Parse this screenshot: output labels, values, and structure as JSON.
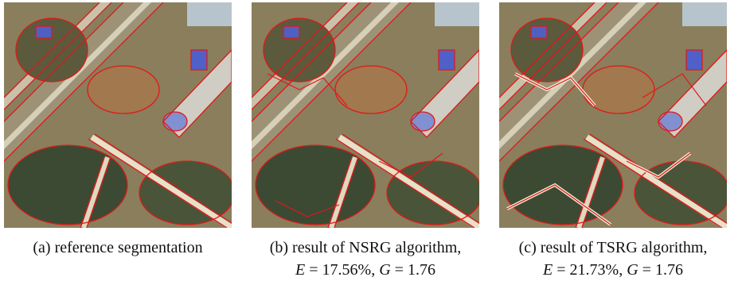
{
  "figure": {
    "panels": [
      {
        "caption_lines": [
          [
            {
              "text": "(a) reference segmentation"
            }
          ]
        ]
      },
      {
        "caption_lines": [
          [
            {
              "text": "(b) result of NSRG algorithm,"
            }
          ],
          [
            {
              "text": "E",
              "italic": true
            },
            {
              "text": " = 17.56%, "
            },
            {
              "text": "G",
              "italic": true
            },
            {
              "text": " = 1.76"
            }
          ]
        ]
      },
      {
        "caption_lines": [
          [
            {
              "text": "(c) result of TSRG algorithm,"
            }
          ],
          [
            {
              "text": "E",
              "italic": true
            },
            {
              "text": " = 21.73%, "
            },
            {
              "text": "G",
              "italic": true
            },
            {
              "text": " = 1.76"
            }
          ]
        ]
      }
    ]
  }
}
